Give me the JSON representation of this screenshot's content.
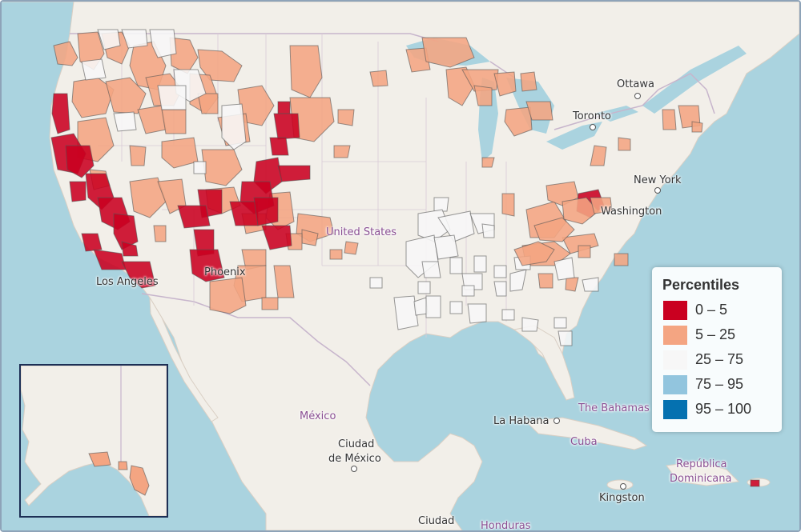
{
  "map": {
    "labels": {
      "ottawa": "Ottawa",
      "toronto": "Toronto",
      "new_york": "New York",
      "washington": "Washington",
      "united_states": "United States",
      "los_angeles": "Los Angeles",
      "phoenix": "Phoenix",
      "mexico": "México",
      "ciudad_de_mexico_1": "Ciudad",
      "ciudad_de_mexico_2": "de México",
      "la_habana": "La Habana",
      "the_bahamas": "The Bahamas",
      "cuba": "Cuba",
      "republica_dominicana_1": "República",
      "republica_dominicana_2": "Dominicana",
      "kingston": "Kingston",
      "ciudad": "Ciudad",
      "honduras": "Honduras"
    },
    "colors": {
      "water": "#aad3df",
      "land": "#f2efe9",
      "border": "#c7b5cc",
      "class_0_5": "#ca0020",
      "class_5_25": "#f4a582",
      "class_25_75": "#f7f7f7",
      "class_75_95": "#92c5de",
      "class_95_100": "#0571b0"
    }
  },
  "legend": {
    "title": "Percentiles",
    "items": [
      {
        "label": "0 – 5",
        "color": "#ca0020"
      },
      {
        "label": "5 – 25",
        "color": "#f4a582"
      },
      {
        "label": "25 – 75",
        "color": "#f7f7f7"
      },
      {
        "label": "75 – 95",
        "color": "#92c5de"
      },
      {
        "label": "95 – 100",
        "color": "#0571b0"
      }
    ]
  },
  "inset": {
    "region": "Alaska"
  }
}
